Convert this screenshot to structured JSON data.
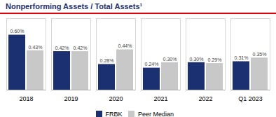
{
  "chart_data": {
    "type": "bar",
    "title": "Nonperforming Assets / Total Assets¹",
    "categories": [
      "2018",
      "2019",
      "2020",
      "2021",
      "2022",
      "Q1 2023"
    ],
    "series": [
      {
        "name": "FRBK",
        "color": "#1B3070",
        "values": [
          0.6,
          0.42,
          0.28,
          0.24,
          0.3,
          0.31
        ],
        "value_labels": [
          "0.60%",
          "0.42%",
          "0.28%",
          "0.24%",
          "0.30%",
          "0.31%"
        ]
      },
      {
        "name": "Peer Median",
        "color": "#C8C8C8",
        "values": [
          0.43,
          0.42,
          0.44,
          0.3,
          0.29,
          0.35
        ],
        "value_labels": [
          "0.43%",
          "0.42%",
          "0.44%",
          "0.30%",
          "0.29%",
          "0.35%"
        ]
      }
    ],
    "ylim": [
      0,
      0.78
    ],
    "data_labels": true,
    "tick_labels": "x",
    "legend": "bottom"
  }
}
